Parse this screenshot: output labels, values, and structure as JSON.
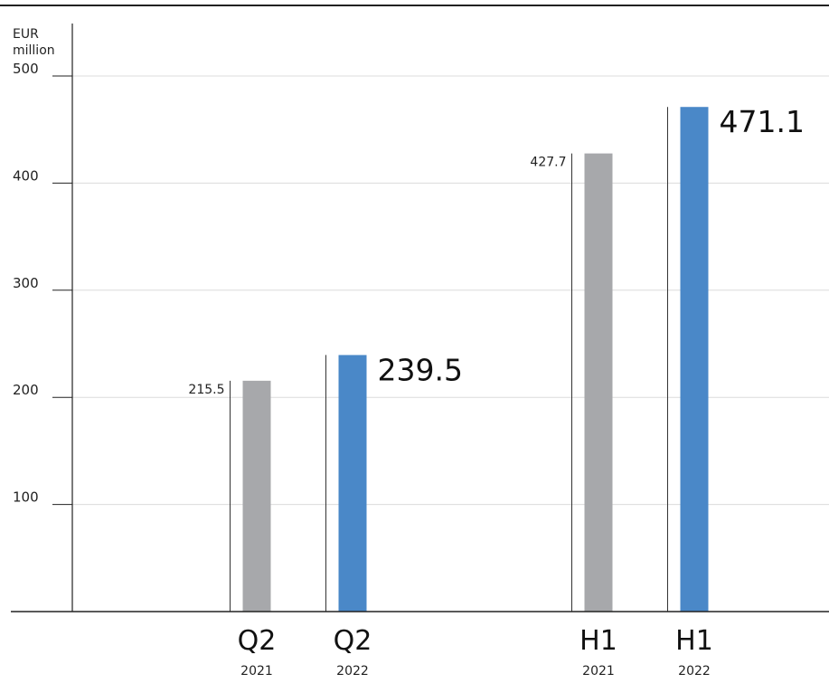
{
  "chart_data": {
    "type": "bar",
    "ylabel_line1": "EUR",
    "ylabel_line2": "million",
    "ylim": [
      0,
      500
    ],
    "yticks": [
      "100",
      "200",
      "300",
      "400",
      "500"
    ],
    "grid": true,
    "bars": [
      {
        "period": "Q2",
        "year": "2021",
        "value": 215.5,
        "label": "215.5",
        "highlight": false
      },
      {
        "period": "Q2",
        "year": "2022",
        "value": 239.5,
        "label": "239.5",
        "highlight": true
      },
      {
        "period": "H1",
        "year": "2021",
        "value": 427.7,
        "label": "427.7",
        "highlight": false
      },
      {
        "period": "H1",
        "year": "2022",
        "value": 471.1,
        "label": "471.1",
        "highlight": true
      }
    ],
    "colors": {
      "previous_year": "#a7a8ab",
      "current_year": "#4a88c8",
      "grid": "#dcdcdc",
      "axis": "#222222"
    }
  }
}
